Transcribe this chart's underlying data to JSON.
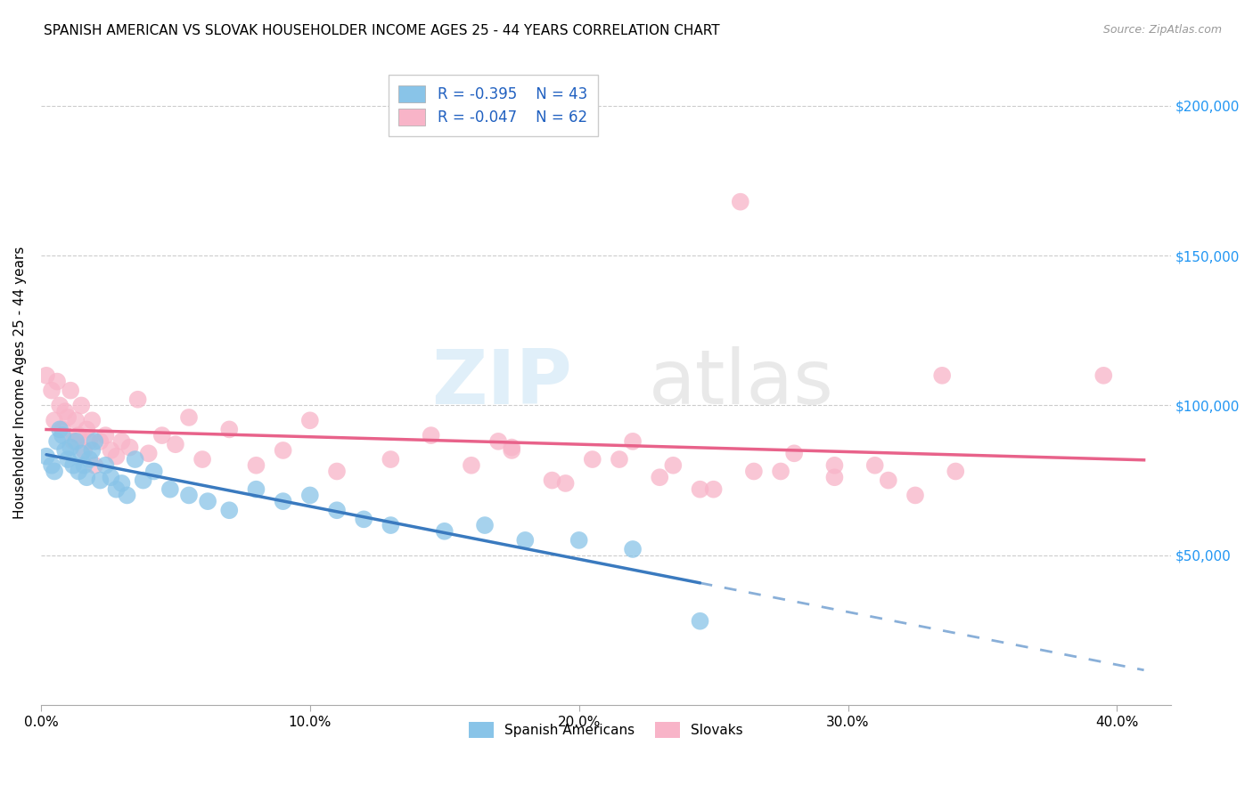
{
  "title": "SPANISH AMERICAN VS SLOVAK HOUSEHOLDER INCOME AGES 25 - 44 YEARS CORRELATION CHART",
  "source": "Source: ZipAtlas.com",
  "ylabel": "Householder Income Ages 25 - 44 years",
  "xlabel_ticks": [
    "0.0%",
    "10.0%",
    "20.0%",
    "30.0%",
    "40.0%"
  ],
  "xlabel_vals": [
    0.0,
    0.1,
    0.2,
    0.3,
    0.4
  ],
  "ytick_labels": [
    "$50,000",
    "$100,000",
    "$150,000",
    "$200,000"
  ],
  "ytick_vals": [
    50000,
    100000,
    150000,
    200000
  ],
  "xlim": [
    0.0,
    0.42
  ],
  "ylim": [
    0,
    215000
  ],
  "legend_r1": "-0.395",
  "legend_n1": "43",
  "legend_r2": "-0.047",
  "legend_n2": "62",
  "color_blue": "#89c4e8",
  "color_pink": "#f8b4c8",
  "color_line_blue": "#3a7abf",
  "color_line_pink": "#e8628a",
  "watermark_zip": "ZIP",
  "watermark_atlas": "atlas",
  "spanish_x": [
    0.002,
    0.004,
    0.005,
    0.006,
    0.007,
    0.008,
    0.009,
    0.01,
    0.011,
    0.012,
    0.013,
    0.014,
    0.015,
    0.016,
    0.017,
    0.018,
    0.019,
    0.02,
    0.022,
    0.024,
    0.026,
    0.028,
    0.03,
    0.032,
    0.035,
    0.038,
    0.042,
    0.048,
    0.055,
    0.062,
    0.07,
    0.08,
    0.09,
    0.1,
    0.11,
    0.12,
    0.13,
    0.15,
    0.165,
    0.18,
    0.2,
    0.22,
    0.245
  ],
  "spanish_y": [
    83000,
    80000,
    78000,
    88000,
    92000,
    90000,
    85000,
    82000,
    86000,
    80000,
    88000,
    78000,
    84000,
    80000,
    76000,
    82000,
    85000,
    88000,
    75000,
    80000,
    76000,
    72000,
    74000,
    70000,
    82000,
    75000,
    78000,
    72000,
    70000,
    68000,
    65000,
    72000,
    68000,
    70000,
    65000,
    62000,
    60000,
    58000,
    60000,
    55000,
    55000,
    52000,
    28000
  ],
  "slovak_x": [
    0.002,
    0.004,
    0.005,
    0.006,
    0.007,
    0.008,
    0.009,
    0.01,
    0.011,
    0.012,
    0.013,
    0.014,
    0.015,
    0.016,
    0.017,
    0.018,
    0.019,
    0.02,
    0.022,
    0.024,
    0.026,
    0.028,
    0.03,
    0.033,
    0.036,
    0.04,
    0.045,
    0.05,
    0.055,
    0.06,
    0.07,
    0.08,
    0.09,
    0.1,
    0.11,
    0.13,
    0.145,
    0.16,
    0.175,
    0.19,
    0.205,
    0.22,
    0.235,
    0.25,
    0.265,
    0.28,
    0.295,
    0.31,
    0.325,
    0.34,
    0.175,
    0.195,
    0.215,
    0.23,
    0.245,
    0.26,
    0.275,
    0.295,
    0.315,
    0.335,
    0.395,
    0.17
  ],
  "slovak_y": [
    110000,
    105000,
    95000,
    108000,
    100000,
    92000,
    98000,
    96000,
    105000,
    88000,
    95000,
    90000,
    100000,
    85000,
    92000,
    88000,
    95000,
    80000,
    88000,
    90000,
    85000,
    83000,
    88000,
    86000,
    102000,
    84000,
    90000,
    87000,
    96000,
    82000,
    92000,
    80000,
    85000,
    95000,
    78000,
    82000,
    90000,
    80000,
    86000,
    75000,
    82000,
    88000,
    80000,
    72000,
    78000,
    84000,
    76000,
    80000,
    70000,
    78000,
    85000,
    74000,
    82000,
    76000,
    72000,
    168000,
    78000,
    80000,
    75000,
    110000,
    110000,
    88000
  ]
}
